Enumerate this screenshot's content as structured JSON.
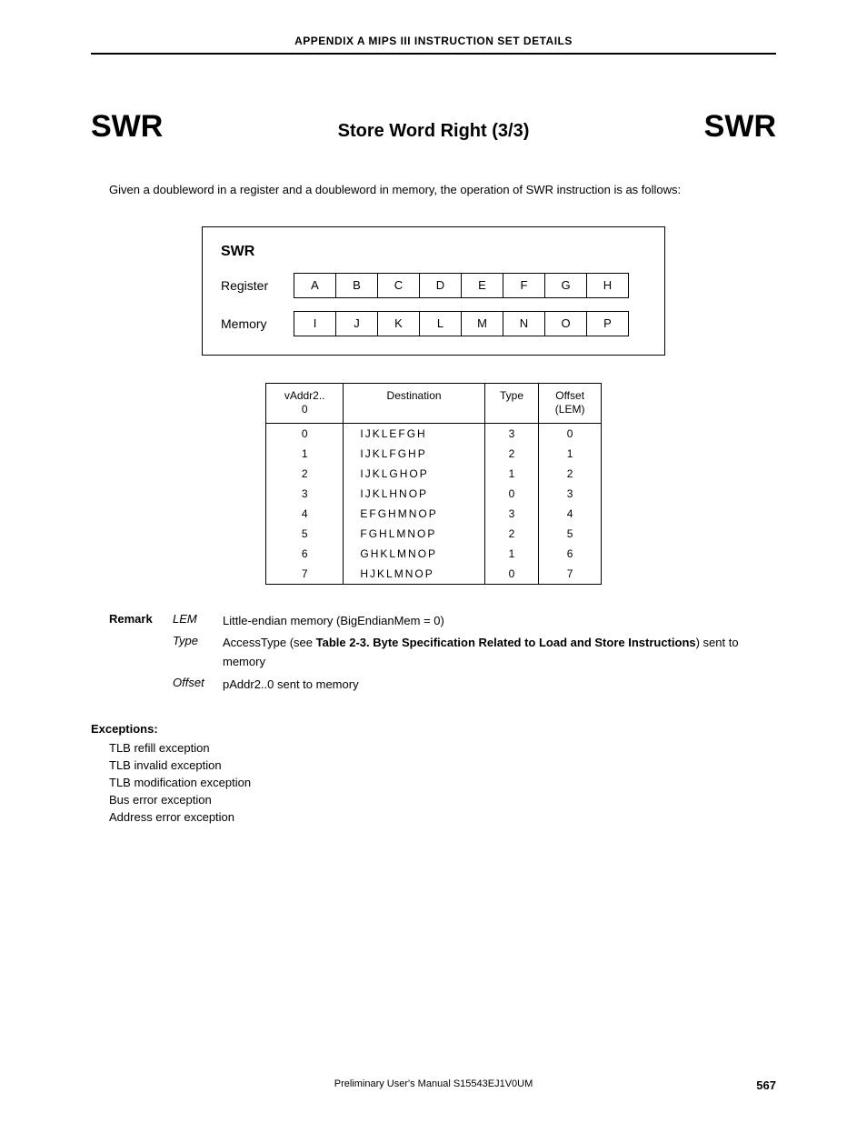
{
  "running_head": "APPENDIX  A   MIPS III INSTRUCTION SET DETAILS",
  "title": {
    "left": "SWR",
    "mid": "Store Word Right (3/3)",
    "right": "SWR"
  },
  "intro": "Given a doubleword in a register and a doubleword in memory, the operation of SWR instruction is as follows:",
  "swr_box": {
    "label": "SWR",
    "rows": [
      {
        "label": "Register",
        "cells": [
          "A",
          "B",
          "C",
          "D",
          "E",
          "F",
          "G",
          "H"
        ]
      },
      {
        "label": "Memory",
        "cells": [
          "I",
          "J",
          "K",
          "L",
          "M",
          "N",
          "O",
          "P"
        ]
      }
    ]
  },
  "dest_table": {
    "headers": [
      "vAddr2..\n0",
      "Destination",
      "Type",
      "Offset\n(LEM)"
    ],
    "rows": [
      [
        "0",
        "I J K L E F G H",
        "3",
        "0"
      ],
      [
        "1",
        "I J K L F G H P",
        "2",
        "1"
      ],
      [
        "2",
        "I J K L G H O P",
        "1",
        "2"
      ],
      [
        "3",
        "I J K L H N O P",
        "0",
        "3"
      ],
      [
        "4",
        "E F G H M N O P",
        "3",
        "4"
      ],
      [
        "5",
        "F G H L M N O P",
        "2",
        "5"
      ],
      [
        "6",
        "G H K L M N O P",
        "1",
        "6"
      ],
      [
        "7",
        "H J K L M N O P",
        "0",
        "7"
      ]
    ]
  },
  "remark": {
    "key": "Remark",
    "items": [
      {
        "term": "LEM",
        "def_parts": [
          {
            "t": "Little-endian memory (BigEndianMem = 0)"
          }
        ]
      },
      {
        "term": "Type",
        "def_parts": [
          {
            "t": "AccessType (see "
          },
          {
            "t": "Table 2-3.  Byte Specification Related to Load and Store Instructions",
            "bold": true
          },
          {
            "t": ") sent to memory"
          }
        ]
      },
      {
        "term": "Offset",
        "def_parts": [
          {
            "t": "pAddr2..0 sent to memory"
          }
        ]
      }
    ]
  },
  "exceptions": {
    "head": "Exceptions:",
    "list": [
      "TLB refill exception",
      "TLB invalid exception",
      "TLB modification exception",
      "Bus error exception",
      "Address error exception"
    ]
  },
  "footer": {
    "mid": "Preliminary User's Manual  S15543EJ1V0UM",
    "page": "567"
  },
  "colors": {
    "text": "#000000",
    "bg": "#ffffff",
    "rule": "#000000"
  }
}
